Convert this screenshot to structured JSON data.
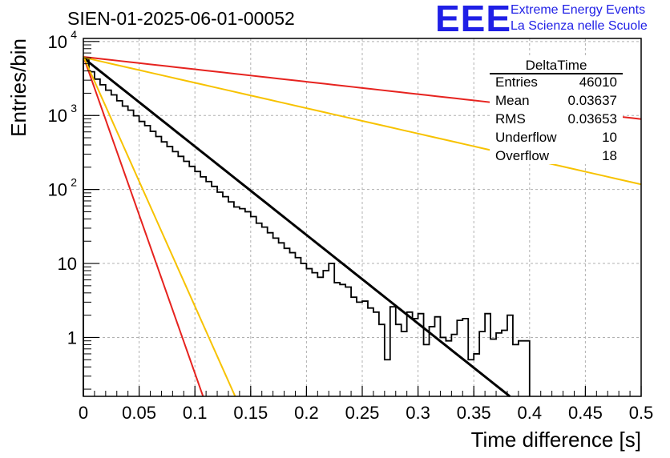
{
  "title": "SIEN-01-2025-06-01-00052",
  "logo": {
    "mark": "EEE",
    "line1": "Extreme Energy Events",
    "line2": "La Scienza nelle Scuole",
    "color": "#1f1fe6"
  },
  "stats_box": {
    "title": "DeltaTime",
    "rows": [
      {
        "label": "Entries",
        "value": "46010"
      },
      {
        "label": "Mean",
        "value": "0.03637"
      },
      {
        "label": "RMS",
        "value": "0.03653"
      },
      {
        "label": "Underflow",
        "value": "10"
      },
      {
        "label": "Overflow",
        "value": "18"
      }
    ]
  },
  "chart_data": {
    "type": "histogram",
    "title": "SIEN-01-2025-06-01-00052",
    "xlabel": "Time difference [s]",
    "ylabel": "Entries/bin",
    "xlim": [
      0,
      0.5
    ],
    "ylim": [
      0.16,
      11000
    ],
    "yscale": "log",
    "grid": true,
    "x_ticks": [
      {
        "value": 0,
        "label": "0"
      },
      {
        "value": 0.05,
        "label": "0.05"
      },
      {
        "value": 0.1,
        "label": "0.1"
      },
      {
        "value": 0.15,
        "label": "0.15"
      },
      {
        "value": 0.2,
        "label": "0.2"
      },
      {
        "value": 0.25,
        "label": "0.25"
      },
      {
        "value": 0.3,
        "label": "0.3"
      },
      {
        "value": 0.35,
        "label": "0.35"
      },
      {
        "value": 0.4,
        "label": "0.4"
      },
      {
        "value": 0.45,
        "label": "0.45"
      },
      {
        "value": 0.5,
        "label": "0.5"
      }
    ],
    "y_ticks": [
      {
        "value": 1,
        "label": "1"
      },
      {
        "value": 10,
        "label": "10"
      },
      {
        "value": 100,
        "label": "10",
        "exp": "2"
      },
      {
        "value": 1000,
        "label": "10",
        "exp": "3"
      },
      {
        "value": 10000,
        "label": "10",
        "exp": "4"
      }
    ],
    "histogram": {
      "color": "#000000",
      "bin_width": 0.005,
      "x_start": 0,
      "counts": [
        5800,
        3900,
        3100,
        2600,
        2200,
        1900,
        1580,
        1340,
        1180,
        990,
        830,
        730,
        610,
        520,
        440,
        380,
        325,
        280,
        240,
        205,
        175,
        148,
        128,
        110,
        92,
        80,
        68,
        58,
        55,
        50,
        43,
        35,
        31,
        26,
        22,
        19,
        16,
        14,
        12,
        10,
        8.5,
        7.5,
        6.5,
        8,
        10,
        5.5,
        5.2,
        4.8,
        3.5,
        3,
        3.1,
        2.5,
        2.2,
        1.5,
        0.5,
        2.6,
        1.5,
        1.2,
        2.2,
        1.8,
        2.1,
        0.8,
        1.4,
        1.9,
        1.0,
        0.9,
        1.1,
        1.7,
        1.8,
        0.5,
        0.6,
        1.2,
        2.1,
        0.95,
        1.15,
        1.25,
        2,
        0.8,
        0.9,
        0.9
      ]
    },
    "curves": [
      {
        "name": "fit",
        "color": "#000000",
        "width": 3,
        "a": 6000,
        "tau": 0.0363
      },
      {
        "name": "red-slow",
        "color": "#e6231f",
        "width": 2,
        "a": 6200,
        "tau": 0.2583
      },
      {
        "name": "yellow-slow",
        "color": "#f7c200",
        "width": 2,
        "a": 6100,
        "tau": 0.1265
      },
      {
        "name": "red-fast",
        "color": "#e6231f",
        "width": 2,
        "a": 6300,
        "tau": 0.01014
      },
      {
        "name": "yellow-fast",
        "color": "#f7c200",
        "width": 2,
        "a": 6300,
        "tau": 0.01286
      }
    ]
  }
}
